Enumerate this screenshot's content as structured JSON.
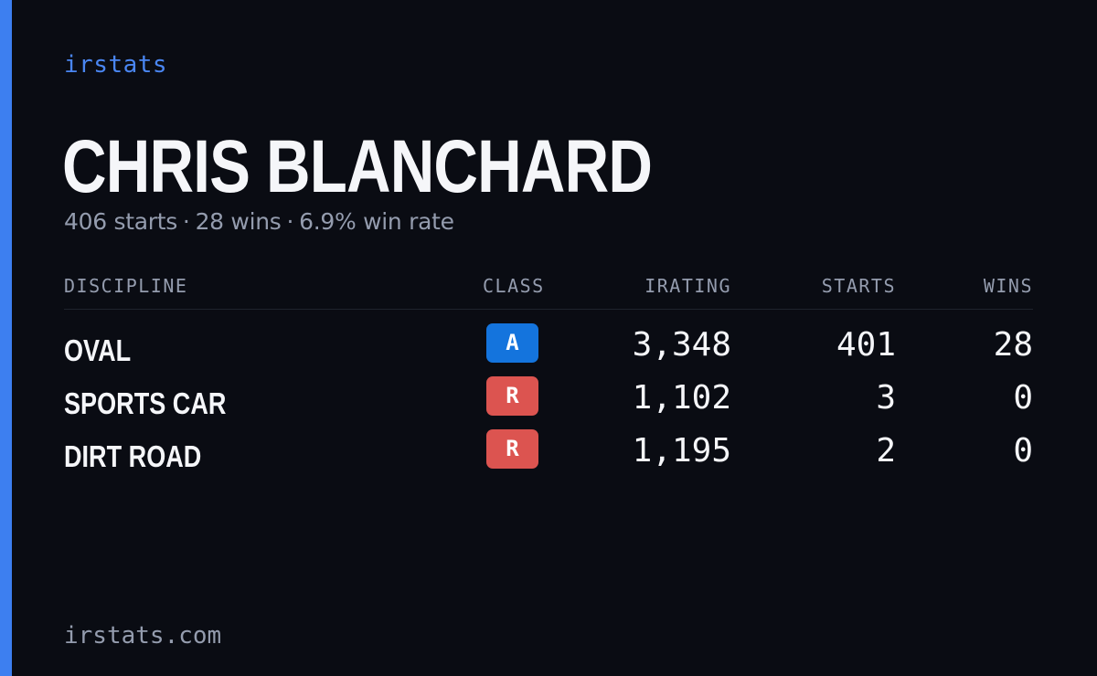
{
  "brand": "irstats",
  "driver": {
    "name": "CHRIS BLANCHARD",
    "summary": {
      "starts": "406 starts",
      "wins": "28 wins",
      "win_rate": "6.9% win rate",
      "separator": "·"
    }
  },
  "table": {
    "headers": {
      "discipline": "DISCIPLINE",
      "class": "CLASS",
      "irating": "IRATING",
      "starts": "STARTS",
      "wins": "WINS"
    },
    "rows": [
      {
        "discipline": "OVAL",
        "class": "A",
        "class_color": "#1474dd",
        "irating": "3,348",
        "starts": "401",
        "wins": "28"
      },
      {
        "discipline": "SPORTS CAR",
        "class": "R",
        "class_color": "#dc5450",
        "irating": "1,102",
        "starts": "3",
        "wins": "0"
      },
      {
        "discipline": "DIRT ROAD",
        "class": "R",
        "class_color": "#dc5450",
        "irating": "1,195",
        "starts": "2",
        "wins": "0"
      }
    ]
  },
  "footer": "irstats.com",
  "colors": {
    "background": "#0a0c13",
    "accent": "#3d7ff0",
    "muted_text": "#949cae"
  }
}
